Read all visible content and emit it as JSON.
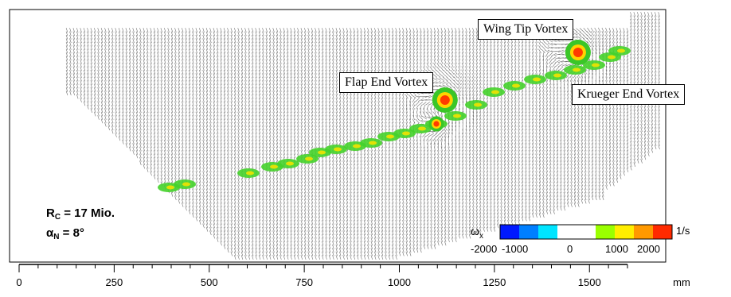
{
  "chart_data": {
    "type": "vector-field",
    "annotations": [
      "Wing Tip Vortex",
      "Flap End Vortex",
      "Krueger End Vortex"
    ],
    "parameters": [
      {
        "symbol": "R",
        "subscript": "C",
        "text": " = 17 Mio."
      },
      {
        "symbol": "α",
        "subscript": "N",
        "text": " = 8°"
      }
    ],
    "colorbar": {
      "variable": "ω",
      "variable_subscript": "x",
      "unit": "1/s",
      "range": [
        -2000,
        2000
      ],
      "tick_labels": [
        "-2000",
        "-1000",
        "0",
        "1000",
        "2000"
      ],
      "colors": [
        "#0019ff",
        "#007fff",
        "#00e5ff",
        "#ffffff",
        "#ffffff",
        "#9aff00",
        "#ffee00",
        "#ff9900",
        "#ff2a00"
      ]
    },
    "x_axis": {
      "unit": "mm",
      "range": [
        0,
        1600
      ],
      "ticks": [
        0,
        250,
        500,
        750,
        1000,
        1250,
        1500
      ],
      "tick_labels": [
        "0",
        "250",
        "500",
        "750",
        "1000",
        "1250",
        "1500"
      ]
    },
    "vortex_core_centers_mm": [
      {
        "name": "Wing Tip Vortex",
        "x": 1470
      },
      {
        "name": "Flap End Vortex",
        "x": 1120
      },
      {
        "name": "Krueger End Vortex",
        "x": 1310
      }
    ]
  }
}
